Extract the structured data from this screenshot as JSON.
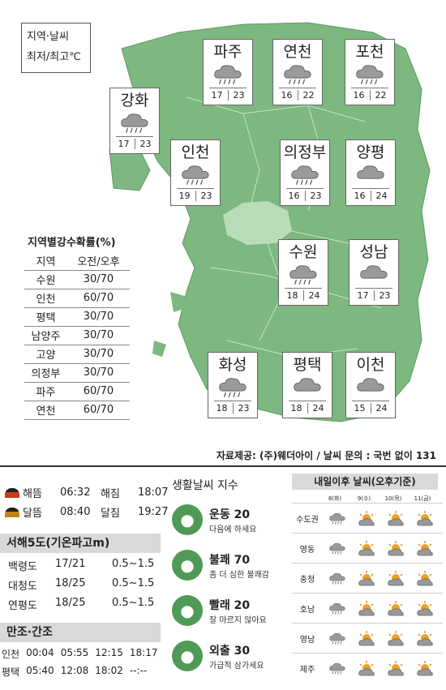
{
  "legend": {
    "line1": "지역·날씨",
    "line2": "최저/최고℃"
  },
  "cities": [
    {
      "name": "파주",
      "icon": "rain-cloud-icon",
      "min": "17",
      "max": "23"
    },
    {
      "name": "연천",
      "icon": "rain-cloud-icon",
      "min": "16",
      "max": "22"
    },
    {
      "name": "포천",
      "icon": "rain-cloud-icon",
      "min": "16",
      "max": "22"
    },
    {
      "name": "강화",
      "icon": "rain-cloud-icon",
      "min": "17",
      "max": "23"
    },
    {
      "name": "인천",
      "icon": "rain-cloud-icon",
      "min": "19",
      "max": "23"
    },
    {
      "name": "의정부",
      "icon": "rain-cloud-icon",
      "min": "16",
      "max": "23"
    },
    {
      "name": "양평",
      "icon": "cloud-icon",
      "min": "16",
      "max": "24"
    },
    {
      "name": "수원",
      "icon": "rain-cloud-icon",
      "min": "18",
      "max": "24"
    },
    {
      "name": "성남",
      "icon": "cloud-icon",
      "min": "17",
      "max": "23"
    },
    {
      "name": "화성",
      "icon": "rain-cloud-icon",
      "min": "18",
      "max": "23"
    },
    {
      "name": "평택",
      "icon": "cloud-icon",
      "min": "18",
      "max": "24"
    },
    {
      "name": "이천",
      "icon": "cloud-icon",
      "min": "15",
      "max": "24"
    }
  ],
  "probability": {
    "title": "지역별강수확률(%)",
    "header": [
      "지역",
      "오전/오후"
    ],
    "rows": [
      [
        "수원",
        "30/70"
      ],
      [
        "인천",
        "60/70"
      ],
      [
        "평택",
        "30/70"
      ],
      [
        "남양주",
        "30/70"
      ],
      [
        "고양",
        "30/70"
      ],
      [
        "의정부",
        "30/70"
      ],
      [
        "파주",
        "60/70"
      ],
      [
        "연천",
        "60/70"
      ]
    ]
  },
  "source": "자료제공: (주)웨더아이 / 날씨 문의 : 국번 없이 131",
  "sun": {
    "rows": [
      {
        "a_label": "해뜸",
        "a_time": "06:32",
        "b_label": "해짐",
        "b_time": "18:07"
      },
      {
        "a_label": "달뜸",
        "a_time": "08:40",
        "b_label": "달짐",
        "b_time": "19:27"
      }
    ]
  },
  "waves": {
    "title": "서해5도(기온파고m)",
    "rows": [
      [
        "백령도",
        "17/21",
        "0.5~1.5"
      ],
      [
        "대청도",
        "18/25",
        "0.5~1.5"
      ],
      [
        "연평도",
        "18/25",
        "0.5~1.5"
      ]
    ]
  },
  "tide": {
    "title": "만조·간조",
    "rows": [
      [
        "인천",
        "00:04",
        "05:55",
        "12:15",
        "18:17"
      ],
      [
        "평택",
        "05:40",
        "12:08",
        "18:02",
        "--:--"
      ]
    ]
  },
  "life": {
    "title": "생활날씨 지수",
    "items": [
      {
        "name": "운동 20",
        "desc": "다음에 하세요",
        "icon": "exercise-icon"
      },
      {
        "name": "불쾌 70",
        "desc": "좀 더 심한 불쾌감",
        "icon": "discomfort-icon"
      },
      {
        "name": "빨래 20",
        "desc": "잘 마르지 않아요",
        "icon": "laundry-icon"
      },
      {
        "name": "외출 30",
        "desc": "가급적 삼가세요",
        "icon": "outing-icon"
      }
    ]
  },
  "forecast": {
    "title": "내일이후 날씨(오후기준)",
    "days": [
      "8(화)",
      "9(수)",
      "10(목)",
      "11(금)"
    ],
    "regions": [
      {
        "name": "수도권",
        "icons": [
          "rain",
          "sun-cloud",
          "sun-cloud",
          "sun-cloud"
        ]
      },
      {
        "name": "영동",
        "icons": [
          "rain",
          "sun-cloud",
          "sun-cloud",
          "sun-cloud"
        ]
      },
      {
        "name": "충청",
        "icons": [
          "rain",
          "sun-cloud",
          "sun-cloud",
          "sun-cloud"
        ]
      },
      {
        "name": "호남",
        "icons": [
          "rain",
          "sun-cloud",
          "sun-cloud",
          "sun-cloud"
        ]
      },
      {
        "name": "영남",
        "icons": [
          "rain",
          "sun-cloud",
          "sun-cloud",
          "sun-cloud"
        ]
      },
      {
        "name": "제주",
        "icons": [
          "rain",
          "sun-cloud",
          "sun-cloud",
          "sun-cloud"
        ]
      }
    ]
  }
}
